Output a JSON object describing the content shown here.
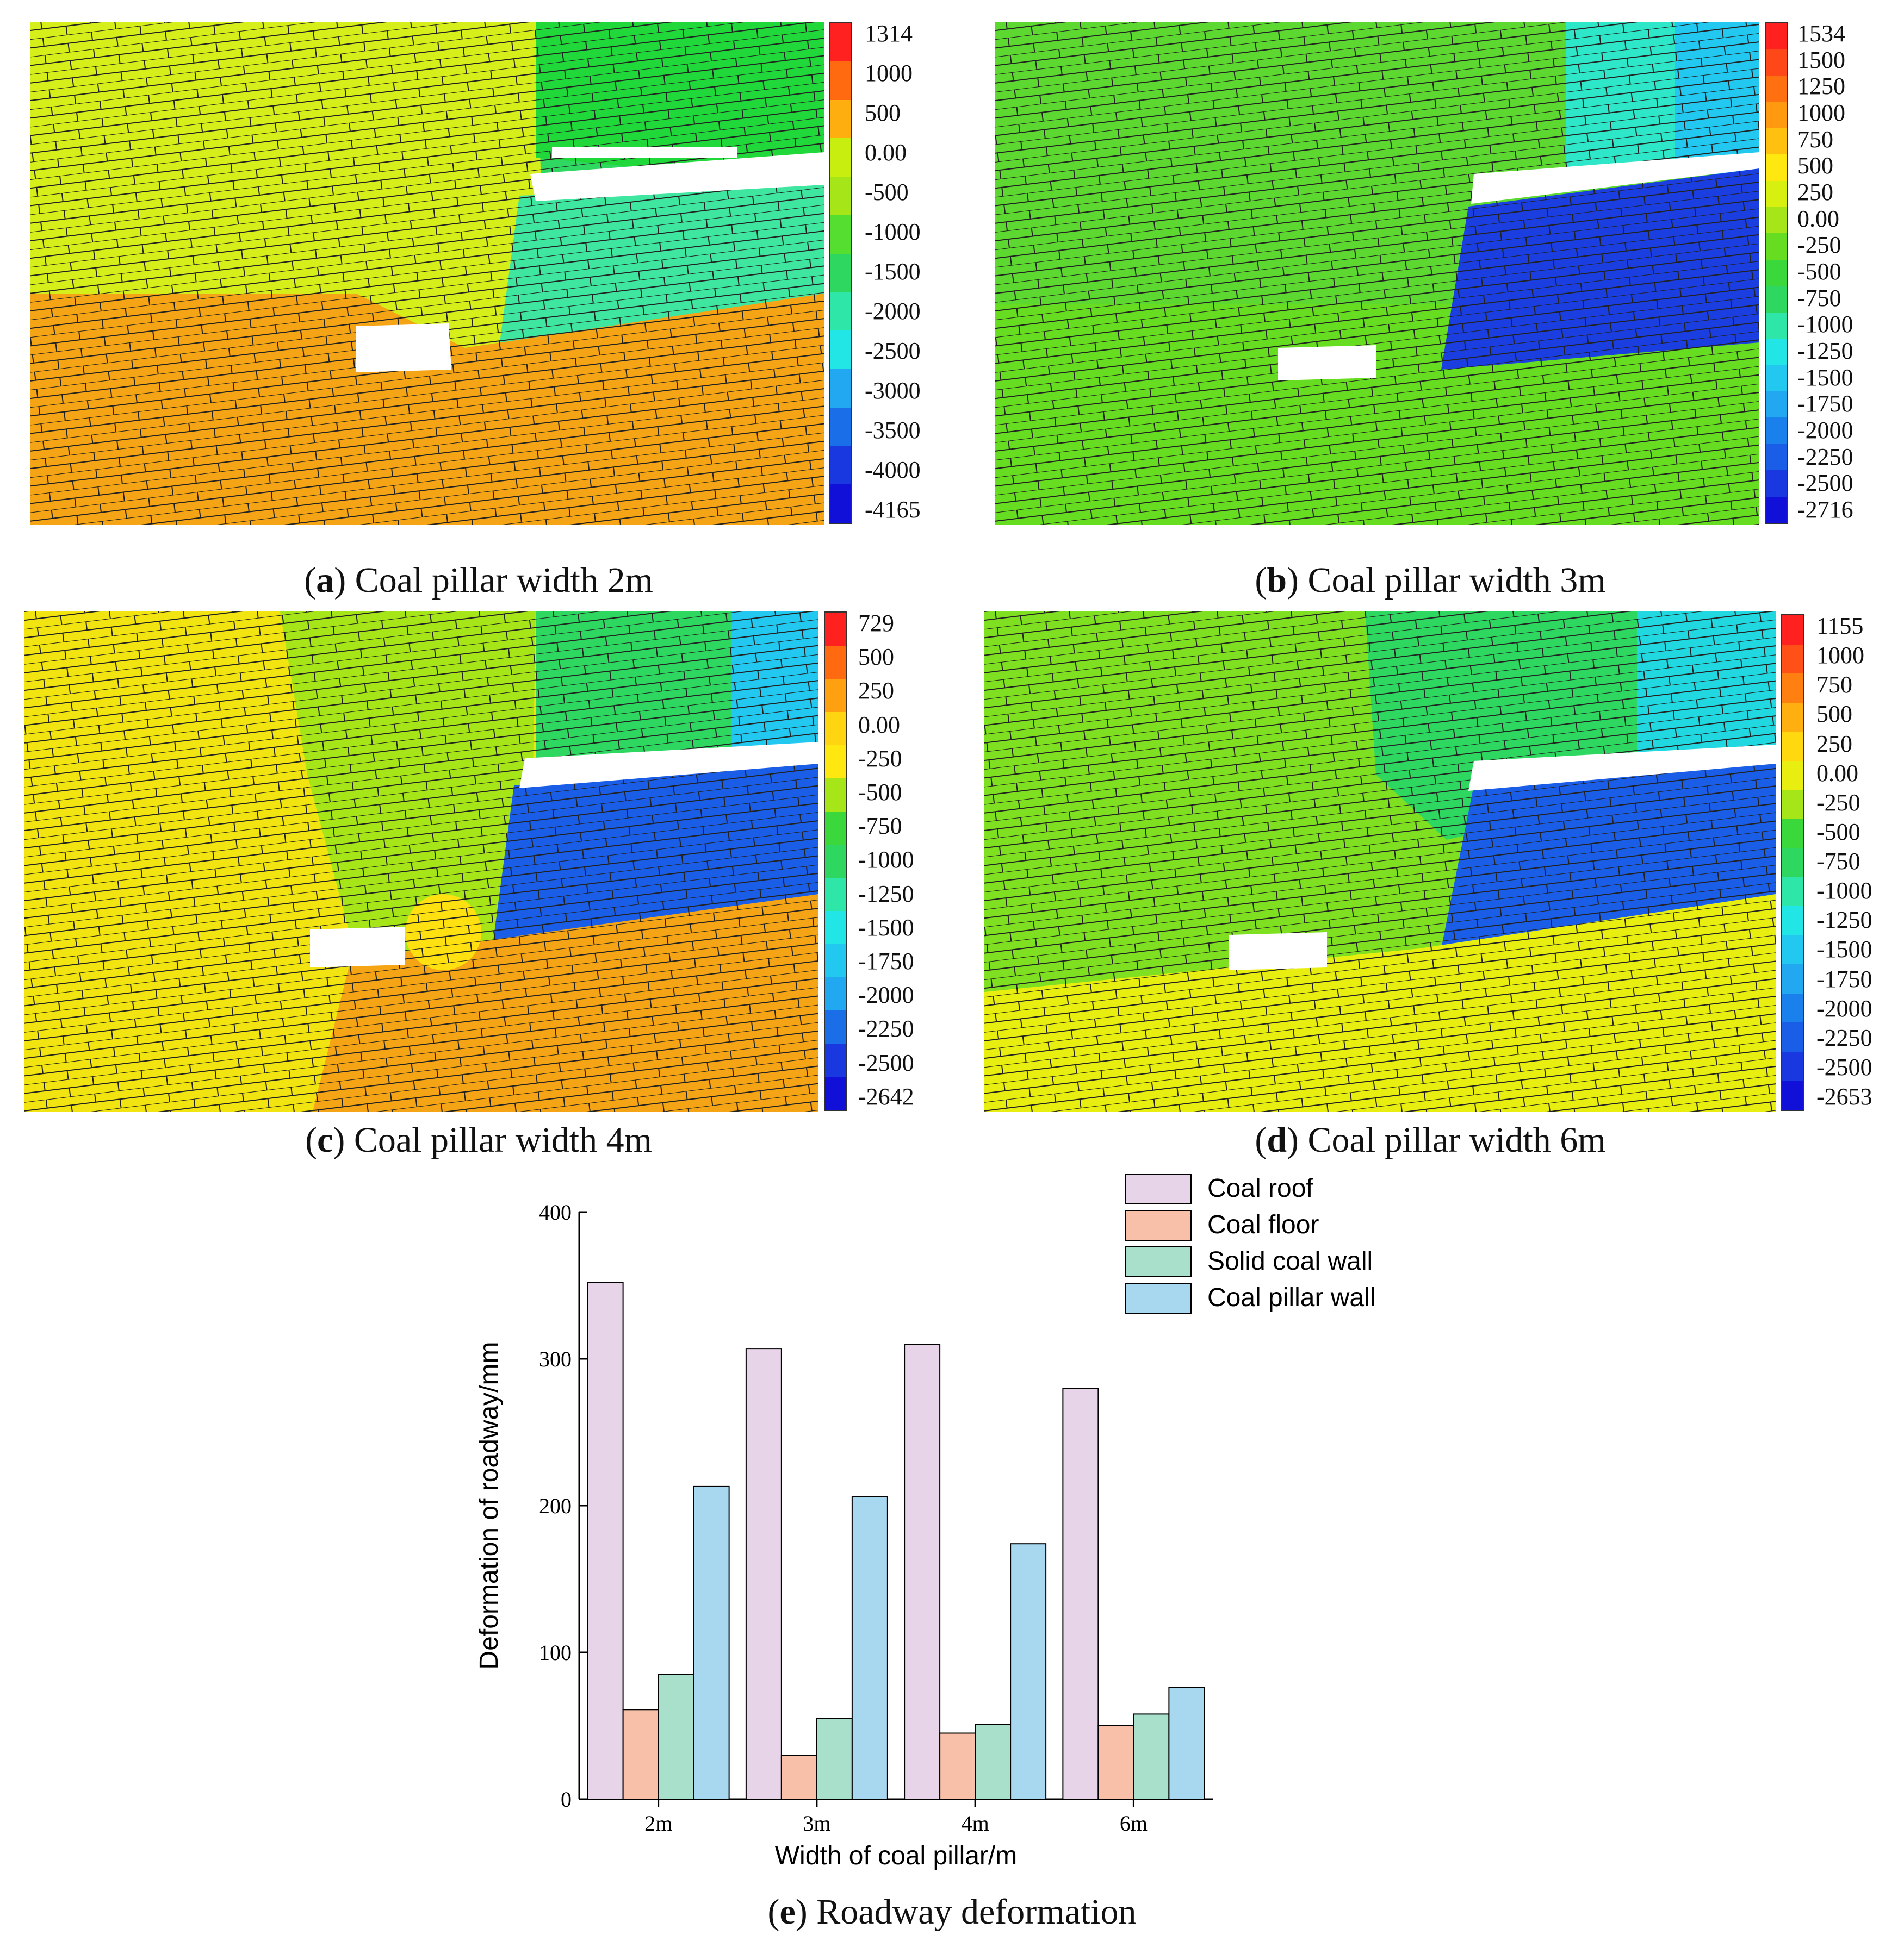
{
  "panels": [
    {
      "letter": "a",
      "caption": " Coal pillar width 2m",
      "legend": [
        "1314",
        "1000",
        "500",
        "0.00",
        "-500",
        "-1000",
        "-1500",
        "-2000",
        "-2500",
        "-3000",
        "-3500",
        "-4000",
        "-4165"
      ],
      "colors": [
        "#ff2020",
        "#ff6a10",
        "#ffae10",
        "#c8ee10",
        "#a6e619",
        "#55dd30",
        "#2ed860",
        "#2ee6a8",
        "#22e6e6",
        "#22a8f0",
        "#1a6ee8",
        "#1a38e0",
        "#1010d8"
      ]
    },
    {
      "letter": "b",
      "caption": " Coal pillar width 3m",
      "legend": [
        "1534",
        "1500",
        "1250",
        "1000",
        "750",
        "500",
        "250",
        "0.00",
        "-250",
        "-500",
        "-750",
        "-1000",
        "-1250",
        "-1500",
        "-1750",
        "-2000",
        "-2250",
        "-2500",
        "-2716"
      ],
      "colors": [
        "#ff2020",
        "#ff4818",
        "#ff7010",
        "#ff9a10",
        "#ffc010",
        "#ffe810",
        "#d8f010",
        "#a6e619",
        "#66dd20",
        "#3ad83a",
        "#2ed860",
        "#2ee6a8",
        "#22e6e6",
        "#22c8f0",
        "#22a8f0",
        "#1a80ec",
        "#1a5ee8",
        "#1a38e0",
        "#1010d8"
      ]
    },
    {
      "letter": "c",
      "caption": " Coal pillar width 4m",
      "legend": [
        "729",
        "500",
        "250",
        "0.00",
        "-250",
        "-500",
        "-750",
        "-1000",
        "-1250",
        "-1500",
        "-1750",
        "-2000",
        "-2250",
        "-2500",
        "-2642"
      ],
      "colors": [
        "#ff2020",
        "#ff6a10",
        "#ffa010",
        "#ffd410",
        "#ffe810",
        "#a6e619",
        "#3ad83a",
        "#2ed860",
        "#2ee6a8",
        "#22e6e6",
        "#22c8f0",
        "#22a8f0",
        "#1a6ee8",
        "#1a38e0",
        "#1010d8"
      ]
    },
    {
      "letter": "d",
      "caption": " Coal pillar width 6m",
      "legend": [
        "1155",
        "1000",
        "750",
        "500",
        "250",
        "0.00",
        "-250",
        "-500",
        "-750",
        "-1000",
        "-1250",
        "-1500",
        "-1750",
        "-2000",
        "-2250",
        "-2500",
        "-2653"
      ],
      "colors": [
        "#ff2020",
        "#ff5018",
        "#ff8010",
        "#ffb010",
        "#ffd810",
        "#e8ee10",
        "#a6e619",
        "#3ad83a",
        "#2ed860",
        "#2ee6a8",
        "#22e6e6",
        "#22c8f0",
        "#22a8f0",
        "#1a80ec",
        "#1a5ee8",
        "#1a38e0",
        "#1010d8"
      ]
    }
  ],
  "chart_caption": {
    "letter": "e",
    "text": " Roadway deformation"
  },
  "chart_data": {
    "type": "bar",
    "xlabel": "Width of coal pillar/m",
    "ylabel": "Deformation of roadway/mm",
    "categories": [
      "2m",
      "3m",
      "4m",
      "6m"
    ],
    "ylim": [
      0,
      400
    ],
    "yticks": [
      0,
      100,
      200,
      300,
      400
    ],
    "legend_position": "top-right",
    "series": [
      {
        "name": "Coal roof",
        "color": "#e8d4e8",
        "values": [
          352,
          307,
          310,
          280
        ]
      },
      {
        "name": "Coal floor",
        "color": "#f8c0a8",
        "values": [
          61,
          30,
          45,
          50
        ]
      },
      {
        "name": "Solid coal wall",
        "color": "#a8e0cc",
        "values": [
          85,
          55,
          51,
          58
        ]
      },
      {
        "name": "Coal pillar wall",
        "color": "#a8d8f0",
        "values": [
          213,
          206,
          174,
          76
        ]
      }
    ]
  }
}
